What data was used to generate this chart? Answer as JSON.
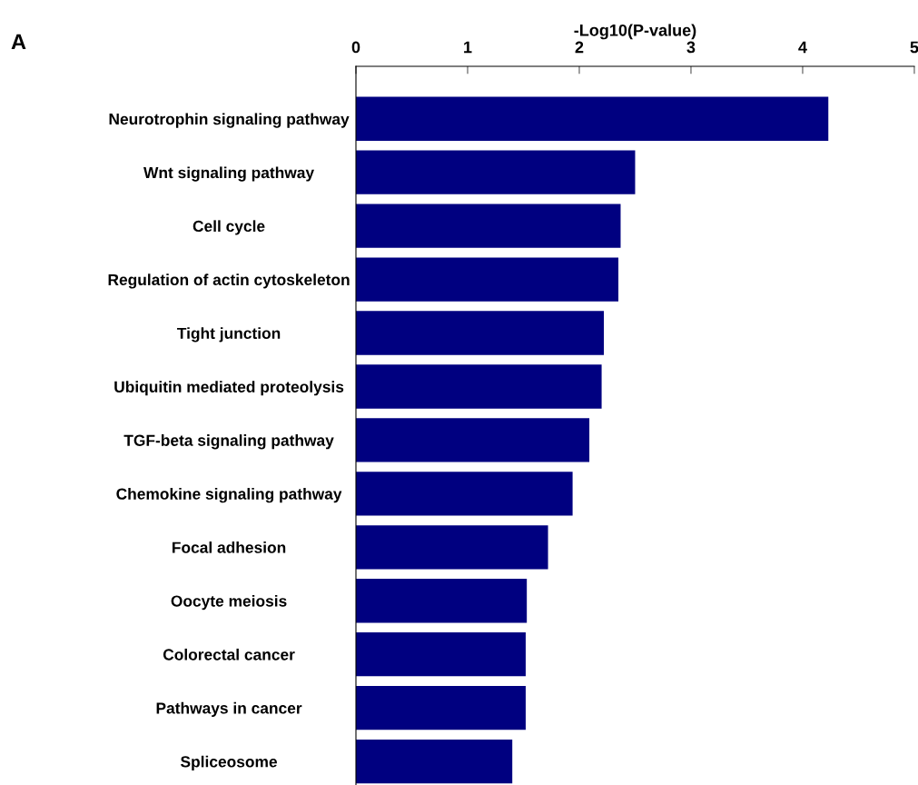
{
  "chart_data": {
    "type": "bar",
    "orientation": "horizontal",
    "xlabel": "-Log10(P-value)",
    "annotations": [
      "A"
    ],
    "categories": [
      "Neurotrophin signaling pathway",
      "Wnt signaling pathway",
      "Cell cycle",
      "Regulation of actin cytoskeleton",
      "Tight junction",
      "Ubiquitin mediated proteolysis",
      "TGF-beta signaling pathway",
      "Chemokine signaling pathway",
      "Focal adhesion",
      "Oocyte meiosis",
      "Colorectal cancer",
      "Pathways in cancer",
      "Spliceosome"
    ],
    "values": [
      4.23,
      2.5,
      2.37,
      2.35,
      2.22,
      2.2,
      2.09,
      1.94,
      1.72,
      1.53,
      1.52,
      1.52,
      1.4
    ],
    "color": "#000080",
    "xlim": [
      0,
      5
    ],
    "xticks": [
      0,
      1,
      2,
      3,
      4,
      5
    ],
    "grid": false
  }
}
